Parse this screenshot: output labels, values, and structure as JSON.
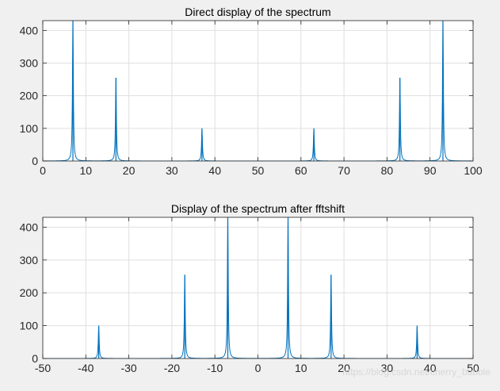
{
  "chart_data": [
    {
      "type": "line",
      "title": "Direct display of the spectrum",
      "xlim": [
        0,
        100
      ],
      "ylim": [
        0,
        430
      ],
      "xticks": [
        0,
        10,
        20,
        30,
        40,
        50,
        60,
        70,
        80,
        90,
        100
      ],
      "yticks": [
        0,
        100,
        200,
        300,
        400
      ],
      "grid": true,
      "line_color": "#0072bd",
      "peaks": [
        {
          "x": 7,
          "y": 430
        },
        {
          "x": 17,
          "y": 255
        },
        {
          "x": 37,
          "y": 100
        },
        {
          "x": 63,
          "y": 100
        },
        {
          "x": 83,
          "y": 255
        },
        {
          "x": 93,
          "y": 430
        }
      ]
    },
    {
      "type": "line",
      "title": "Display of the spectrum after fftshift",
      "xlim": [
        -50,
        50
      ],
      "ylim": [
        0,
        430
      ],
      "xticks": [
        -50,
        -40,
        -30,
        -20,
        -10,
        0,
        10,
        20,
        30,
        40,
        50
      ],
      "yticks": [
        0,
        100,
        200,
        300,
        400
      ],
      "grid": true,
      "line_color": "#0072bd",
      "peaks": [
        {
          "x": -37,
          "y": 100
        },
        {
          "x": -17,
          "y": 255
        },
        {
          "x": -7,
          "y": 430
        },
        {
          "x": 7,
          "y": 430
        },
        {
          "x": 17,
          "y": 255
        },
        {
          "x": 37,
          "y": 100
        }
      ]
    }
  ],
  "watermark": "https://blog.csdn.net/cherry_bubble"
}
